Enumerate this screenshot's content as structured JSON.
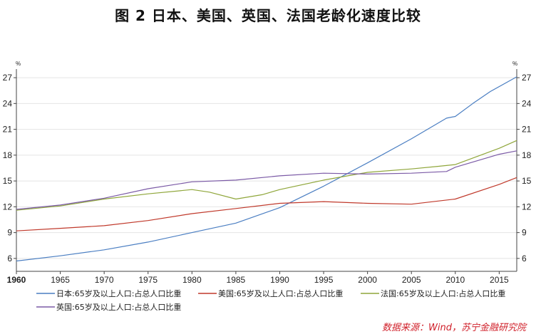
{
  "title": "图 2    日本、美国、英国、法国老龄化速度比较",
  "source": "数据来源：Wind，苏宁金融研究院",
  "chart_data": {
    "type": "line",
    "title": "图 2    日本、美国、英国、法国老龄化速度比较",
    "xlabel": "",
    "ylabel": "%",
    "y_unit_left": "%",
    "y_unit_right": "%",
    "xlim": [
      1960,
      2017
    ],
    "ylim": [
      4.5,
      28
    ],
    "x_ticks": [
      1960,
      1965,
      1970,
      1975,
      1980,
      1985,
      1990,
      1995,
      2000,
      2005,
      2010,
      2015
    ],
    "y_ticks": [
      6,
      9,
      12,
      15,
      18,
      21,
      24,
      27
    ],
    "grid": true,
    "legend_position": "bottom",
    "series": [
      {
        "name": "日本:65岁及以上人口:占总人口比重",
        "color": "#4a7ec2",
        "x": [
          1960,
          1965,
          1970,
          1975,
          1980,
          1985,
          1990,
          1995,
          2000,
          2005,
          2009,
          2010,
          2012,
          2014,
          2017
        ],
        "values": [
          5.7,
          6.3,
          7.0,
          7.9,
          9.0,
          10.1,
          11.9,
          14.4,
          17.1,
          19.9,
          22.3,
          22.5,
          24.0,
          25.4,
          27.1
        ]
      },
      {
        "name": "美国:65岁及以上人口:占总人口比重",
        "color": "#c0392b",
        "x": [
          1960,
          1965,
          1970,
          1975,
          1980,
          1985,
          1990,
          1995,
          2000,
          2005,
          2010,
          2015,
          2017
        ],
        "values": [
          9.2,
          9.5,
          9.8,
          10.4,
          11.2,
          11.8,
          12.4,
          12.6,
          12.4,
          12.3,
          12.9,
          14.6,
          15.4
        ]
      },
      {
        "name": "法国:65岁及以上人口:占总人口比重",
        "color": "#8fa63a",
        "x": [
          1960,
          1965,
          1970,
          1975,
          1980,
          1982,
          1985,
          1988,
          1990,
          1995,
          2000,
          2005,
          2008,
          2010,
          2015,
          2017
        ],
        "values": [
          11.6,
          12.1,
          12.9,
          13.5,
          14.0,
          13.7,
          12.9,
          13.4,
          14.0,
          15.1,
          16.0,
          16.4,
          16.7,
          16.9,
          18.8,
          19.7
        ]
      },
      {
        "name": "英国:65岁及以上人口:占总人口比重",
        "color": "#7b5aa6",
        "x": [
          1960,
          1965,
          1970,
          1975,
          1980,
          1985,
          1990,
          1995,
          2000,
          2005,
          2009,
          2010,
          2015,
          2017
        ],
        "values": [
          11.7,
          12.2,
          13.0,
          14.1,
          14.9,
          15.1,
          15.6,
          15.9,
          15.8,
          15.9,
          16.1,
          16.6,
          18.1,
          18.5
        ]
      }
    ]
  }
}
